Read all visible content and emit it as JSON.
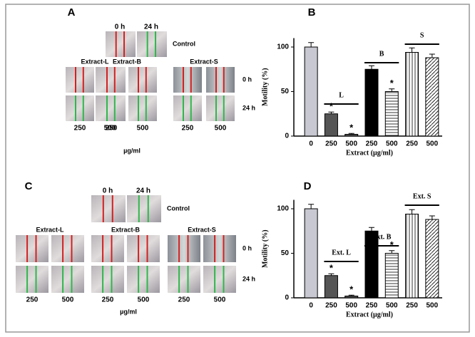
{
  "panels": [
    {
      "letter": "A",
      "top_times": [
        "0 h",
        "24 h"
      ],
      "control": "Control",
      "extracts": [
        "Extract-L",
        "Extract-B",
        "Extract-S"
      ],
      "row_labels": [
        "0 h",
        "24 h"
      ],
      "doses": [
        "250",
        "500"
      ],
      "unit": "µg/ml"
    },
    {
      "letter": "C",
      "top_times": [
        "0 h",
        "24 h"
      ],
      "control": "Control",
      "extracts": [
        "Extract-L",
        "Extract-B",
        "Extract-S"
      ],
      "row_labels": [
        "0 h",
        "24 h"
      ],
      "doses": [
        "250",
        "500"
      ],
      "unit": "µg/ml"
    }
  ],
  "chart_data": [
    {
      "type": "bar",
      "letter": "B",
      "y_label": "Motility (%)",
      "x_label": "Extract (µg/ml)",
      "categories": [
        "0",
        "250",
        "500",
        "250",
        "500",
        "250",
        "500"
      ],
      "values": [
        100,
        25,
        2,
        75,
        50,
        94,
        88
      ],
      "errors": [
        5,
        2,
        1,
        4,
        3,
        5,
        4
      ],
      "markers": [
        null,
        "*",
        "*",
        null,
        "*",
        null,
        null
      ],
      "colors": [
        "#c8c8d2",
        "#555555",
        "#555555",
        "#000000",
        "#ffffff",
        "#ffffff",
        "#ffffff"
      ],
      "patterns": [
        "solid",
        "solid",
        "solid",
        "solid",
        "horizontal",
        "vertical",
        "diagonal"
      ],
      "groups": [
        "L",
        "B",
        "S"
      ],
      "ylim": [
        0,
        110
      ],
      "yticks": [
        0,
        50,
        100
      ]
    },
    {
      "type": "bar",
      "letter": "D",
      "y_label": "Motility (%)",
      "x_label": "Extract  (µg/ml)",
      "categories": [
        "0",
        "250",
        "500",
        "250",
        "500",
        "250",
        "500"
      ],
      "values": [
        100,
        25,
        2,
        75,
        50,
        94,
        88
      ],
      "errors": [
        5,
        2,
        1,
        4,
        3,
        5,
        4
      ],
      "markers": [
        null,
        "*",
        "*",
        null,
        "*",
        null,
        null
      ],
      "colors": [
        "#c8c8d2",
        "#555555",
        "#555555",
        "#000000",
        "#ffffff",
        "#ffffff",
        "#ffffff"
      ],
      "patterns": [
        "solid",
        "solid",
        "solid",
        "solid",
        "horizontal",
        "vertical",
        "diagonal"
      ],
      "groups": [
        "Ext. L",
        "Ext. B",
        "Ext. S"
      ],
      "ylim": [
        0,
        110
      ],
      "yticks": [
        0,
        50,
        100
      ]
    }
  ]
}
